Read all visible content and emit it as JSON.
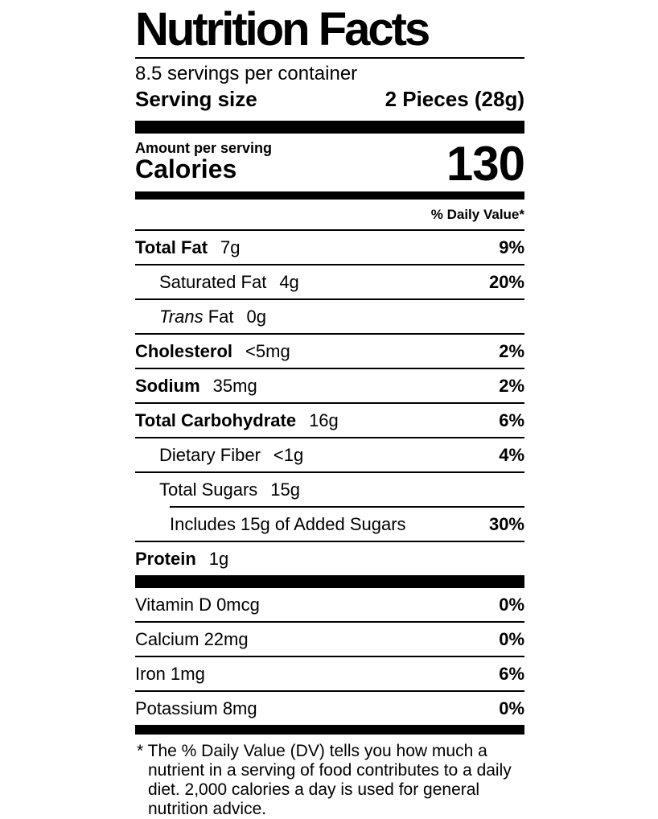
{
  "title": "Nutrition Facts",
  "servings_per_container": "8.5 servings per container",
  "serving_size": {
    "label": "Serving size",
    "value": "2 Pieces (28g)"
  },
  "calories": {
    "header": "Amount per serving",
    "label": "Calories",
    "value": "130"
  },
  "daily_value_header": "% Daily Value*",
  "nutrients": [
    {
      "name": "Total Fat",
      "amount": "7g",
      "dv": "9%",
      "bold": true,
      "indent": 0
    },
    {
      "name": "Saturated Fat",
      "amount": "4g",
      "dv": "20%",
      "bold": false,
      "indent": 1
    },
    {
      "name_italic": "Trans",
      "name": "Fat",
      "amount": "0g",
      "dv": "",
      "bold": false,
      "indent": 1
    },
    {
      "name": "Cholesterol",
      "amount": "<5mg",
      "dv": "2%",
      "bold": true,
      "indent": 0
    },
    {
      "name": "Sodium",
      "amount": "35mg",
      "dv": "2%",
      "bold": true,
      "indent": 0
    },
    {
      "name": "Total Carbohydrate",
      "amount": "16g",
      "dv": "6%",
      "bold": true,
      "indent": 0
    },
    {
      "name": "Dietary Fiber",
      "amount": "<1g",
      "dv": "4%",
      "bold": false,
      "indent": 1
    },
    {
      "name": "Total Sugars",
      "amount": "15g",
      "dv": "",
      "bold": false,
      "indent": 1,
      "rule_after": "indented"
    },
    {
      "name": "Includes 15g of Added Sugars",
      "amount": "",
      "dv": "30%",
      "bold": false,
      "indent": 2
    },
    {
      "name": "Protein",
      "amount": "1g",
      "dv": "",
      "bold": true,
      "indent": 0,
      "last": true
    }
  ],
  "micronutrients": [
    {
      "name": "Vitamin D 0mcg",
      "dv": "0%"
    },
    {
      "name": "Calcium 22mg",
      "dv": "0%"
    },
    {
      "name": "Iron 1mg",
      "dv": "6%"
    },
    {
      "name": "Potassium 8mg",
      "dv": "0%"
    }
  ],
  "footnote": {
    "marker": "*",
    "text": "The % Daily Value (DV) tells you how much a nutrient in a serving of food contributes to a daily diet. 2,000 calories a day is used for general nutrition advice."
  },
  "colors": {
    "ink": "#000000",
    "background": "#ffffff"
  }
}
